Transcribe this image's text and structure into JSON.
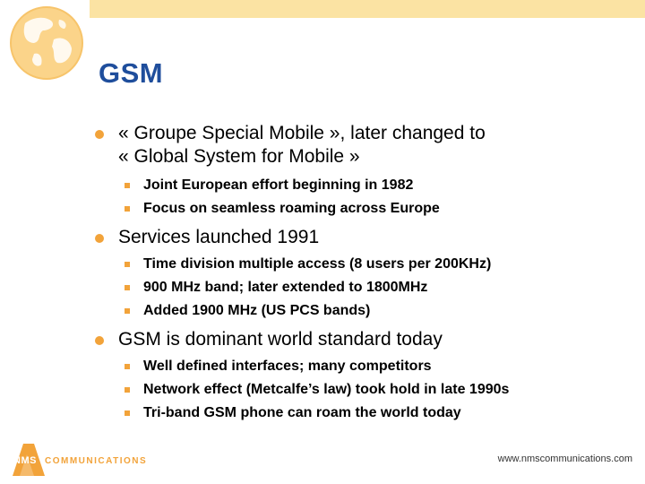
{
  "slide": {
    "title": "GSM",
    "bullets": [
      {
        "text": "« Groupe Special Mobile », later changed to « Global System for Mobile »",
        "line1": "« Groupe Special Mobile », later changed to",
        "line2": "« Global System for Mobile »",
        "sub": [
          "Joint European effort beginning in 1982",
          "Focus on seamless roaming across Europe"
        ]
      },
      {
        "text": "Services launched 1991",
        "sub": [
          "Time division multiple access (8 users per 200KHz)",
          "900 MHz band; later extended to 1800MHz",
          "Added 1900 MHz (US PCS bands)"
        ]
      },
      {
        "text": "GSM is dominant world standard today",
        "sub": [
          "Well defined interfaces; many competitors",
          "Network effect (Metcalfe’s law) took hold in late 1990s",
          "Tri-band GSM phone can roam the world today"
        ]
      }
    ]
  },
  "footer": {
    "logo_nms": "NMS",
    "logo_text": "COMMUNICATIONS",
    "url": "www.nmscommunications.com"
  },
  "colors": {
    "title": "#1f4e9c",
    "accent": "#f2a33a",
    "band": "#fbe3a3"
  },
  "icons": {
    "globe": "globe-icon",
    "logo": "nms-logo-icon"
  }
}
